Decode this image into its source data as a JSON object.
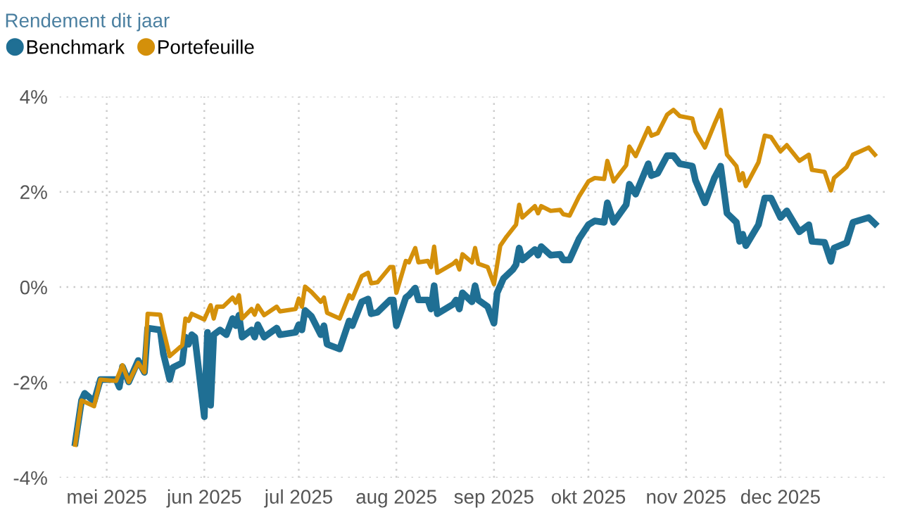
{
  "chart_data": {
    "type": "line",
    "title": "Rendement dit jaar",
    "xlim": [
      "2025-04-16",
      "2026-01-04"
    ],
    "ylim": [
      -4,
      4
    ],
    "xticks": [
      {
        "value": "2025-05-01",
        "label": "mei 2025"
      },
      {
        "value": "2025-06-01",
        "label": "jun 2025"
      },
      {
        "value": "2025-07-01",
        "label": "jul 2025"
      },
      {
        "value": "2025-08-01",
        "label": "aug 2025"
      },
      {
        "value": "2025-09-01",
        "label": "sep 2025"
      },
      {
        "value": "2025-10-01",
        "label": "okt 2025"
      },
      {
        "value": "2025-11-01",
        "label": "nov 2025"
      },
      {
        "value": "2025-12-01",
        "label": "dec 2025"
      }
    ],
    "yticks": [
      {
        "value": -4,
        "label": "-4%"
      },
      {
        "value": -2,
        "label": "-2%"
      },
      {
        "value": 0,
        "label": "0%"
      },
      {
        "value": 2,
        "label": "2%"
      },
      {
        "value": 4,
        "label": "4%"
      }
    ],
    "grid": true,
    "legend": "top left",
    "marker": "none",
    "line_style": "solid",
    "series": [
      {
        "name": "Benchmark",
        "color": "#1f6f94",
        "x": [
          "2025-04-21",
          "2025-04-23",
          "2025-04-24",
          "2025-04-27",
          "2025-04-29",
          "2025-05-04",
          "2025-05-05",
          "2025-05-06",
          "2025-05-08",
          "2025-05-11",
          "2025-05-13",
          "2025-05-14",
          "2025-05-18",
          "2025-05-19",
          "2025-05-21",
          "2025-05-22",
          "2025-05-25",
          "2025-05-26",
          "2025-05-27",
          "2025-05-28",
          "2025-05-29",
          "2025-06-01",
          "2025-06-02",
          "2025-06-03",
          "2025-06-04",
          "2025-06-06",
          "2025-06-08",
          "2025-06-10",
          "2025-06-11",
          "2025-06-12",
          "2025-06-13",
          "2025-06-16",
          "2025-06-17",
          "2025-06-18",
          "2025-06-20",
          "2025-06-24",
          "2025-06-25",
          "2025-06-30",
          "2025-07-01",
          "2025-07-02",
          "2025-07-03",
          "2025-07-05",
          "2025-07-08",
          "2025-07-09",
          "2025-07-10",
          "2025-07-14",
          "2025-07-17",
          "2025-07-18",
          "2025-07-21",
          "2025-07-23",
          "2025-07-24",
          "2025-07-26",
          "2025-07-30",
          "2025-07-31",
          "2025-08-01",
          "2025-08-04",
          "2025-08-05",
          "2025-08-07",
          "2025-08-08",
          "2025-08-11",
          "2025-08-12",
          "2025-08-13",
          "2025-08-14",
          "2025-08-19",
          "2025-08-20",
          "2025-08-21",
          "2025-08-22",
          "2025-08-25",
          "2025-08-26",
          "2025-08-27",
          "2025-08-30",
          "2025-09-01",
          "2025-09-02",
          "2025-09-04",
          "2025-09-07",
          "2025-09-08",
          "2025-09-09",
          "2025-09-10",
          "2025-09-14",
          "2025-09-15",
          "2025-09-16",
          "2025-09-19",
          "2025-09-22",
          "2025-09-23",
          "2025-09-25",
          "2025-09-28",
          "2025-10-01",
          "2025-10-03",
          "2025-10-06",
          "2025-10-07",
          "2025-10-09",
          "2025-10-13",
          "2025-10-14",
          "2025-10-16",
          "2025-10-20",
          "2025-10-21",
          "2025-10-23",
          "2025-10-26",
          "2025-10-28",
          "2025-10-30",
          "2025-11-03",
          "2025-11-04",
          "2025-11-07",
          "2025-11-10",
          "2025-11-12",
          "2025-11-14",
          "2025-11-17",
          "2025-11-18",
          "2025-11-19",
          "2025-11-20",
          "2025-11-24",
          "2025-11-26",
          "2025-11-28",
          "2025-12-01",
          "2025-12-03",
          "2025-12-07",
          "2025-12-10",
          "2025-12-11",
          "2025-12-15",
          "2025-12-17",
          "2025-12-18",
          "2025-12-22",
          "2025-12-24",
          "2025-12-29",
          "2025-12-31"
        ],
        "values": [
          -3.27,
          -2.38,
          -2.23,
          -2.4,
          -1.94,
          -1.94,
          -2.1,
          -1.67,
          -1.99,
          -1.54,
          -1.79,
          -0.86,
          -0.9,
          -1.4,
          -1.94,
          -1.69,
          -1.59,
          -1.05,
          -1.2,
          -1.0,
          -1.05,
          -2.72,
          -0.95,
          -2.48,
          -1.0,
          -0.9,
          -1.0,
          -0.66,
          -0.81,
          -0.59,
          -1.05,
          -0.9,
          -1.05,
          -0.79,
          -1.05,
          -0.86,
          -1.0,
          -0.95,
          -0.79,
          -0.9,
          -0.49,
          -0.61,
          -1.0,
          -0.81,
          -1.2,
          -1.3,
          -0.71,
          -0.81,
          -0.31,
          -0.25,
          -0.56,
          -0.53,
          -0.27,
          -0.27,
          -0.81,
          -0.22,
          -0.17,
          -0.02,
          -0.27,
          -0.27,
          -0.46,
          0.03,
          -0.56,
          -0.36,
          -0.27,
          -0.46,
          -0.12,
          -0.31,
          0.03,
          -0.27,
          -0.41,
          -0.76,
          -0.12,
          0.18,
          0.37,
          0.47,
          0.82,
          0.57,
          0.79,
          0.67,
          0.85,
          0.67,
          0.69,
          0.57,
          0.57,
          1.01,
          1.31,
          1.39,
          1.36,
          1.77,
          1.36,
          1.73,
          2.16,
          1.95,
          2.59,
          2.34,
          2.39,
          2.76,
          2.76,
          2.59,
          2.54,
          2.24,
          1.77,
          2.29,
          2.54,
          1.55,
          1.36,
          0.96,
          1.11,
          0.87,
          1.31,
          1.87,
          1.87,
          1.46,
          1.6,
          1.16,
          1.31,
          0.96,
          0.94,
          0.54,
          0.82,
          0.93,
          1.36,
          1.46,
          1.33
        ]
      },
      {
        "name": "Portefeuille",
        "color": "#d4900a",
        "x": [
          "2025-04-21",
          "2025-04-23",
          "2025-04-27",
          "2025-04-29",
          "2025-05-04",
          "2025-05-06",
          "2025-05-08",
          "2025-05-11",
          "2025-05-13",
          "2025-05-14",
          "2025-05-18",
          "2025-05-19",
          "2025-05-21",
          "2025-05-25",
          "2025-05-26",
          "2025-05-27",
          "2025-05-28",
          "2025-06-01",
          "2025-06-03",
          "2025-06-04",
          "2025-06-05",
          "2025-06-07",
          "2025-06-10",
          "2025-06-11",
          "2025-06-12",
          "2025-06-13",
          "2025-06-16",
          "2025-06-17",
          "2025-06-18",
          "2025-06-20",
          "2025-06-24",
          "2025-06-25",
          "2025-06-30",
          "2025-07-01",
          "2025-07-02",
          "2025-07-03",
          "2025-07-05",
          "2025-07-08",
          "2025-07-09",
          "2025-07-10",
          "2025-07-14",
          "2025-07-17",
          "2025-07-18",
          "2025-07-21",
          "2025-07-23",
          "2025-07-24",
          "2025-07-26",
          "2025-07-30",
          "2025-07-31",
          "2025-08-01",
          "2025-08-04",
          "2025-08-05",
          "2025-08-07",
          "2025-08-08",
          "2025-08-11",
          "2025-08-12",
          "2025-08-13",
          "2025-08-14",
          "2025-08-19",
          "2025-08-20",
          "2025-08-21",
          "2025-08-22",
          "2025-08-25",
          "2025-08-26",
          "2025-08-27",
          "2025-08-30",
          "2025-09-01",
          "2025-09-03",
          "2025-09-05",
          "2025-09-08",
          "2025-09-09",
          "2025-09-10",
          "2025-09-14",
          "2025-09-15",
          "2025-09-16",
          "2025-09-19",
          "2025-09-22",
          "2025-09-23",
          "2025-09-25",
          "2025-09-28",
          "2025-10-01",
          "2025-10-03",
          "2025-10-06",
          "2025-10-07",
          "2025-10-09",
          "2025-10-13",
          "2025-10-14",
          "2025-10-16",
          "2025-10-20",
          "2025-10-21",
          "2025-10-23",
          "2025-10-26",
          "2025-10-28",
          "2025-10-30",
          "2025-11-03",
          "2025-11-04",
          "2025-11-07",
          "2025-11-10",
          "2025-11-12",
          "2025-11-14",
          "2025-11-17",
          "2025-11-18",
          "2025-11-19",
          "2025-11-20",
          "2025-11-24",
          "2025-11-26",
          "2025-11-28",
          "2025-12-01",
          "2025-12-03",
          "2025-12-07",
          "2025-12-10",
          "2025-12-11",
          "2025-12-15",
          "2025-12-17",
          "2025-12-18",
          "2025-12-22",
          "2025-12-24",
          "2025-12-29",
          "2025-12-31"
        ],
        "values": [
          -3.31,
          -2.38,
          -2.5,
          -1.94,
          -1.97,
          -1.64,
          -1.99,
          -1.59,
          -1.79,
          -0.56,
          -0.58,
          -0.9,
          -1.45,
          -1.22,
          -0.66,
          -0.71,
          -0.56,
          -0.68,
          -0.38,
          -0.66,
          -0.41,
          -0.41,
          -0.22,
          -0.33,
          -0.17,
          -0.66,
          -0.46,
          -0.58,
          -0.39,
          -0.59,
          -0.41,
          -0.51,
          -0.46,
          -0.24,
          -0.41,
          0.01,
          -0.1,
          -0.31,
          -0.22,
          -0.54,
          -0.66,
          -0.17,
          -0.24,
          0.23,
          0.3,
          0.08,
          0.1,
          0.42,
          0.42,
          -0.12,
          0.55,
          0.52,
          0.82,
          0.52,
          0.55,
          0.42,
          0.85,
          0.3,
          0.49,
          0.55,
          0.37,
          0.69,
          0.52,
          0.82,
          0.49,
          0.42,
          0.06,
          0.87,
          1.06,
          1.31,
          1.73,
          1.46,
          1.7,
          1.55,
          1.7,
          1.6,
          1.62,
          1.53,
          1.5,
          1.9,
          2.22,
          2.29,
          2.27,
          2.65,
          2.22,
          2.56,
          2.95,
          2.75,
          3.34,
          3.18,
          3.23,
          3.62,
          3.72,
          3.59,
          3.54,
          3.27,
          2.93,
          3.42,
          3.72,
          2.78,
          2.54,
          2.24,
          2.39,
          2.12,
          2.62,
          3.18,
          3.15,
          2.85,
          2.98,
          2.65,
          2.78,
          2.46,
          2.42,
          2.03,
          2.29,
          2.52,
          2.78,
          2.93,
          2.78
        ]
      }
    ]
  }
}
